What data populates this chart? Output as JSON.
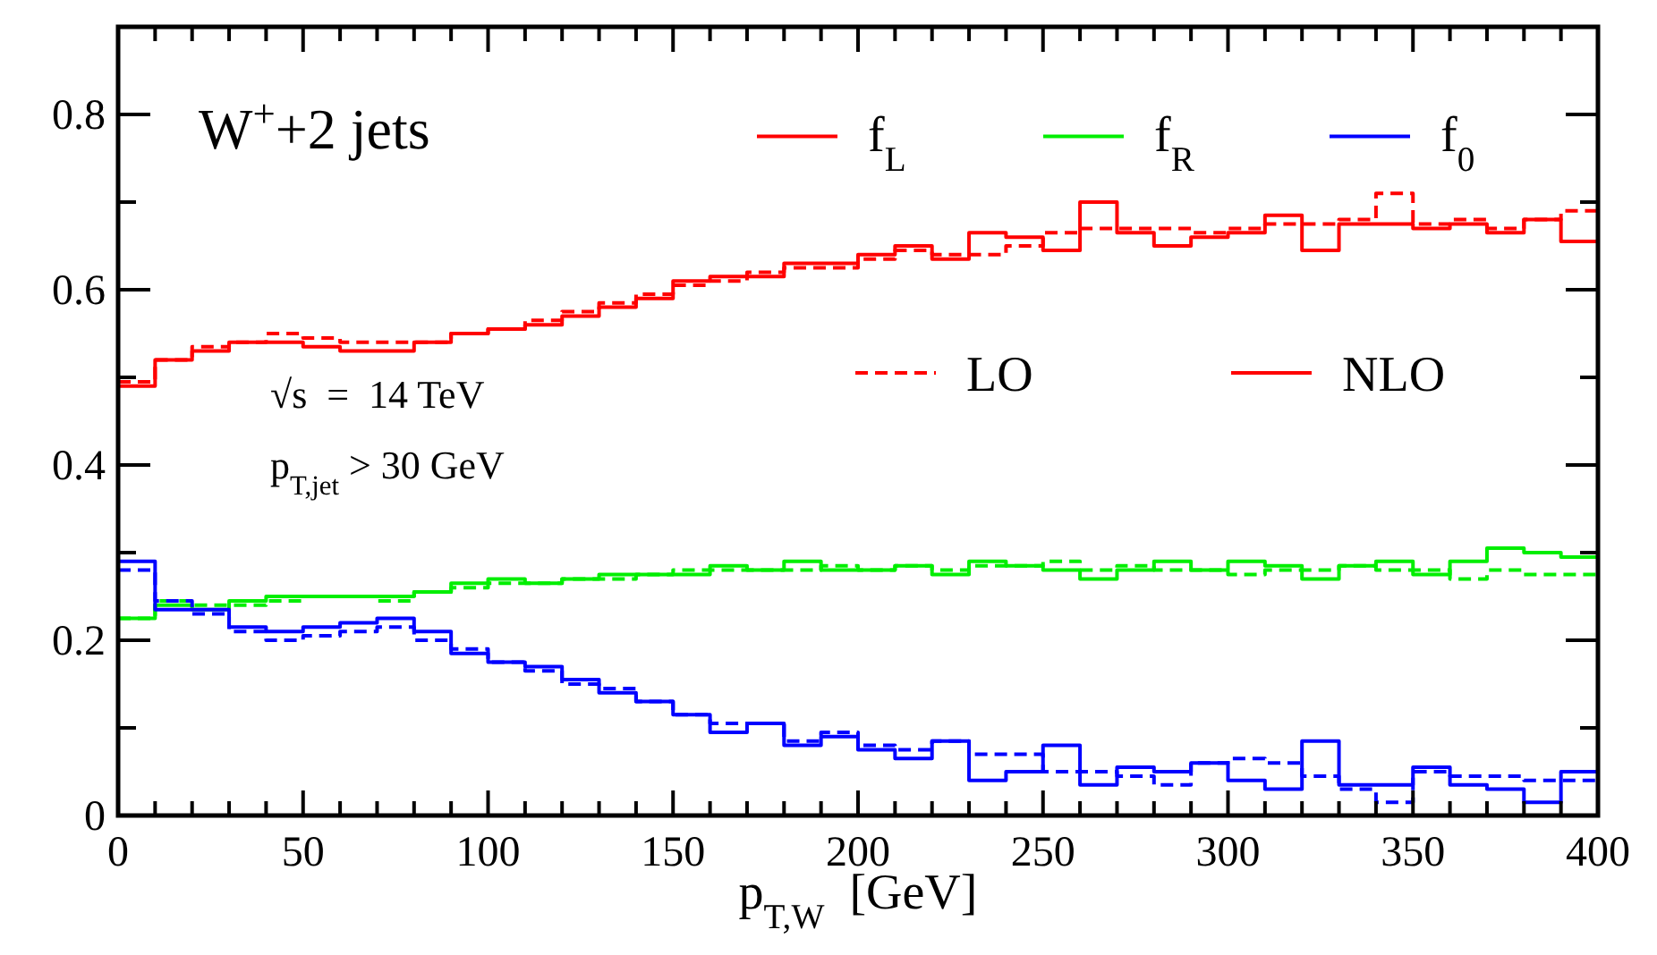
{
  "chart_data": {
    "type": "step",
    "title": "W$^{+}$+2 jets",
    "xlabel": "p$_{T,W}$  [GeV]",
    "annotations": [
      "√s  =  14 TeV",
      "p$_{T,jet}$ > 30 GeV",
      "LO",
      "NLO"
    ],
    "x": [
      0,
      10,
      20,
      30,
      40,
      50,
      60,
      70,
      80,
      90,
      100,
      110,
      120,
      130,
      140,
      150,
      160,
      170,
      180,
      190,
      200,
      210,
      220,
      230,
      240,
      250,
      260,
      270,
      280,
      290,
      300,
      310,
      320,
      330,
      340,
      350,
      360,
      370,
      380,
      390,
      400
    ],
    "series": [
      {
        "color": "#ff0000",
        "line_style": "dashed",
        "values": [
          0.495,
          0.52,
          0.535,
          0.54,
          0.55,
          0.545,
          0.54,
          0.54,
          0.54,
          0.55,
          0.555,
          0.565,
          0.575,
          0.585,
          0.595,
          0.605,
          0.61,
          0.62,
          0.625,
          0.625,
          0.635,
          0.645,
          0.64,
          0.64,
          0.65,
          0.665,
          0.67,
          0.67,
          0.67,
          0.665,
          0.67,
          0.675,
          0.675,
          0.68,
          0.71,
          0.675,
          0.68,
          0.67,
          0.68,
          0.69,
          0.69
        ]
      },
      {
        "name": "f$_{L}$",
        "color": "#ff0000",
        "line_style": "solid",
        "values": [
          0.49,
          0.52,
          0.53,
          0.54,
          0.54,
          0.535,
          0.53,
          0.53,
          0.54,
          0.55,
          0.555,
          0.56,
          0.57,
          0.58,
          0.59,
          0.61,
          0.615,
          0.615,
          0.63,
          0.63,
          0.64,
          0.65,
          0.635,
          0.665,
          0.66,
          0.645,
          0.7,
          0.665,
          0.65,
          0.66,
          0.665,
          0.685,
          0.645,
          0.675,
          0.675,
          0.67,
          0.675,
          0.665,
          0.68,
          0.655,
          0.655
        ]
      },
      {
        "color": "#00ee00",
        "line_style": "dashed",
        "values": [
          0.225,
          0.245,
          0.24,
          0.24,
          0.245,
          0.25,
          0.25,
          0.245,
          0.255,
          0.26,
          0.265,
          0.265,
          0.27,
          0.27,
          0.275,
          0.28,
          0.28,
          0.28,
          0.28,
          0.285,
          0.28,
          0.285,
          0.28,
          0.285,
          0.285,
          0.29,
          0.28,
          0.285,
          0.28,
          0.28,
          0.275,
          0.28,
          0.28,
          0.285,
          0.28,
          0.28,
          0.27,
          0.28,
          0.275,
          0.275,
          0.275
        ]
      },
      {
        "name": "f$_{R}$",
        "color": "#00ee00",
        "line_style": "solid",
        "values": [
          0.225,
          0.24,
          0.235,
          0.245,
          0.25,
          0.25,
          0.25,
          0.25,
          0.255,
          0.265,
          0.27,
          0.265,
          0.27,
          0.275,
          0.275,
          0.275,
          0.285,
          0.28,
          0.29,
          0.28,
          0.28,
          0.285,
          0.275,
          0.29,
          0.285,
          0.28,
          0.27,
          0.28,
          0.29,
          0.28,
          0.29,
          0.285,
          0.27,
          0.285,
          0.29,
          0.275,
          0.29,
          0.305,
          0.3,
          0.295,
          0.295
        ]
      },
      {
        "color": "#0000ff",
        "line_style": "dashed",
        "values": [
          0.28,
          0.245,
          0.23,
          0.21,
          0.2,
          0.205,
          0.21,
          0.215,
          0.2,
          0.19,
          0.175,
          0.165,
          0.15,
          0.145,
          0.13,
          0.115,
          0.105,
          0.105,
          0.085,
          0.095,
          0.08,
          0.075,
          0.085,
          0.07,
          0.07,
          0.05,
          0.05,
          0.045,
          0.035,
          0.06,
          0.065,
          0.06,
          0.045,
          0.03,
          0.015,
          0.05,
          0.045,
          0.045,
          0.04,
          0.04,
          0.04
        ]
      },
      {
        "name": "f$_{0}$",
        "color": "#0000ff",
        "line_style": "solid",
        "values": [
          0.29,
          0.235,
          0.235,
          0.215,
          0.21,
          0.215,
          0.22,
          0.225,
          0.21,
          0.185,
          0.175,
          0.17,
          0.155,
          0.14,
          0.13,
          0.115,
          0.095,
          0.105,
          0.08,
          0.09,
          0.075,
          0.065,
          0.085,
          0.04,
          0.05,
          0.08,
          0.035,
          0.055,
          0.05,
          0.06,
          0.04,
          0.03,
          0.085,
          0.035,
          0.035,
          0.055,
          0.035,
          0.03,
          0.015,
          0.05,
          0.05
        ]
      }
    ],
    "xlim": [
      0,
      400
    ],
    "xticks": [
      0,
      {
        "value": 10,
        "label": null
      },
      {
        "value": 20,
        "label": null
      },
      {
        "value": 30,
        "label": null
      },
      {
        "value": 40,
        "label": null
      },
      50,
      {
        "value": 60,
        "label": null
      },
      {
        "value": 70,
        "label": null
      },
      {
        "value": 80,
        "label": null
      },
      {
        "value": 90,
        "label": null
      },
      100,
      {
        "value": 110,
        "label": null
      },
      {
        "value": 120,
        "label": null
      },
      {
        "value": 130,
        "label": null
      },
      {
        "value": 140,
        "label": null
      },
      150,
      {
        "value": 160,
        "label": null
      },
      {
        "value": 170,
        "label": null
      },
      {
        "value": 180,
        "label": null
      },
      {
        "value": 190,
        "label": null
      },
      200,
      {
        "value": 210,
        "label": null
      },
      {
        "value": 220,
        "label": null
      },
      {
        "value": 230,
        "label": null
      },
      {
        "value": 240,
        "label": null
      },
      250,
      {
        "value": 260,
        "label": null
      },
      {
        "value": 270,
        "label": null
      },
      {
        "value": 280,
        "label": null
      },
      {
        "value": 290,
        "label": null
      },
      300,
      {
        "value": 310,
        "label": null
      },
      {
        "value": 320,
        "label": null
      },
      {
        "value": 330,
        "label": null
      },
      {
        "value": 340,
        "label": null
      },
      350,
      {
        "value": 360,
        "label": null
      },
      {
        "value": 370,
        "label": null
      },
      {
        "value": 380,
        "label": null
      },
      {
        "value": 390,
        "label": null
      },
      400
    ],
    "ylim": [
      0,
      0.9
    ],
    "yticks": [
      0,
      {
        "value": 0.1,
        "label": null
      },
      0.2,
      {
        "value": 0.3,
        "label": null
      },
      0.4,
      {
        "value": 0.5,
        "label": null
      },
      0.6,
      {
        "value": 0.7,
        "label": null
      },
      0.8
    ],
    "legend": "top right",
    "grid": false
  }
}
